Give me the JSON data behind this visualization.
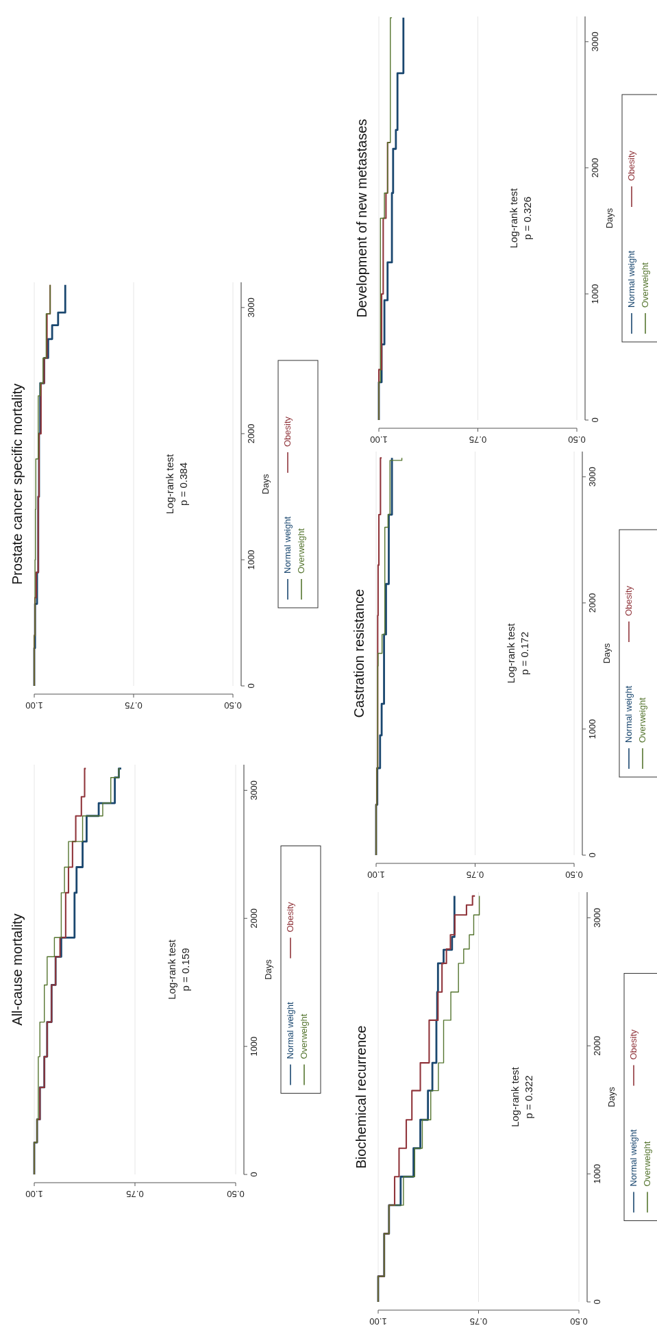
{
  "chart_data": [
    {
      "type": "step",
      "title": "All-cause mortality",
      "ylabel": "Days",
      "ylim": [
        0,
        3200
      ],
      "yticks": [
        0,
        1000,
        2000,
        3000
      ],
      "xlim": [
        1,
        0.5
      ],
      "xticks": [
        {
          "value": 1,
          "label": "1.00"
        },
        {
          "value": 0.75,
          "label": "0.75"
        },
        {
          "value": 0.5,
          "label": "0.50"
        }
      ],
      "grid": "x",
      "legend": "right",
      "annotations": [
        "Log-rank  test",
        "p = 0.159"
      ],
      "series": [
        {
          "name": "Normal weight",
          "color": "#1a476f",
          "values": [
            0,
            250,
            430,
            680,
            920,
            1190,
            1480,
            1700,
            1850,
            2200,
            2400,
            2600,
            2800,
            2900,
            3100,
            3170
          ],
          "x": [
            1,
            0.993,
            0.986,
            0.975,
            0.968,
            0.957,
            0.947,
            0.933,
            0.9,
            0.895,
            0.88,
            0.87,
            0.84,
            0.8,
            0.79,
            0.784
          ]
        },
        {
          "name": "Obesity",
          "color": "#90353b",
          "values": [
            0,
            250,
            430,
            680,
            920,
            1190,
            1480,
            1700,
            1850,
            2200,
            2400,
            2600,
            2800,
            2950,
            3170
          ],
          "x": [
            1,
            0.993,
            0.986,
            0.975,
            0.968,
            0.957,
            0.947,
            0.936,
            0.922,
            0.915,
            0.905,
            0.897,
            0.883,
            0.875,
            0.872
          ]
        },
        {
          "name": "Overweight",
          "color": "#55752f",
          "values": [
            0,
            250,
            430,
            680,
            920,
            1190,
            1480,
            1700,
            1850,
            2200,
            2400,
            2600,
            2800,
            2900,
            3100,
            3170
          ],
          "x": [
            1,
            0.993,
            0.99,
            0.99,
            0.986,
            0.975,
            0.968,
            0.95,
            0.933,
            0.925,
            0.915,
            0.88,
            0.83,
            0.81,
            0.79,
            0.787
          ]
        }
      ]
    },
    {
      "type": "step",
      "title": "Prostate cancer specific mortality",
      "ylabel": "Days",
      "ylim": [
        0,
        3200
      ],
      "yticks": [
        0,
        1000,
        2000,
        3000
      ],
      "xlim": [
        1,
        0.5
      ],
      "xticks": [
        {
          "value": 1,
          "label": "1.00"
        },
        {
          "value": 0.75,
          "label": "0.75"
        },
        {
          "value": 0.5,
          "label": "0.50"
        }
      ],
      "grid": "x",
      "legend": "right",
      "annotations": [
        "Log-rank  test",
        "p = 0.384"
      ],
      "series": [
        {
          "name": "Normal weight",
          "color": "#1a476f",
          "values": [
            0,
            300,
            650,
            900,
            1500,
            2000,
            2400,
            2600,
            2750,
            2860,
            2960,
            3180
          ],
          "x": [
            1,
            0.998,
            0.993,
            0.99,
            0.988,
            0.985,
            0.975,
            0.965,
            0.955,
            0.94,
            0.922,
            0.922
          ]
        },
        {
          "name": "Obesity",
          "color": "#90353b",
          "values": [
            0,
            400,
            700,
            900,
            1500,
            2000,
            2400,
            2600,
            2950,
            3180
          ],
          "x": [
            1,
            0.998,
            0.995,
            0.99,
            0.988,
            0.983,
            0.975,
            0.968,
            0.96,
            0.96
          ]
        },
        {
          "name": "Overweight",
          "color": "#55752f",
          "values": [
            0,
            400,
            1000,
            1400,
            1800,
            2300,
            2400,
            2600,
            2950,
            3180
          ],
          "x": [
            1,
            0.998,
            0.997,
            0.996,
            0.99,
            0.985,
            0.978,
            0.97,
            0.96,
            0.96
          ]
        }
      ]
    },
    {
      "type": "step",
      "title": "Biochemical recurrence",
      "ylabel": "Days",
      "ylim": [
        0,
        3200
      ],
      "yticks": [
        0,
        1000,
        2000,
        3000
      ],
      "xlim": [
        1,
        0.5
      ],
      "xticks": [
        {
          "value": 1,
          "label": "1.00"
        },
        {
          "value": 0.75,
          "label": "0.75"
        },
        {
          "value": 0.5,
          "label": "0.50"
        }
      ],
      "grid": "x",
      "legend": "right",
      "annotations": [
        "Log-rank  test",
        "p = 0.322"
      ],
      "series": [
        {
          "name": "Normal weight",
          "color": "#1a476f",
          "values": [
            0,
            200,
            533,
            755,
            978,
            1200,
            1422,
            1650,
            1867,
            2200,
            2420,
            2644,
            2750,
            2850,
            3170
          ],
          "x": [
            1,
            0.985,
            0.973,
            0.944,
            0.912,
            0.895,
            0.876,
            0.865,
            0.855,
            0.853,
            0.851,
            0.837,
            0.816,
            0.81,
            0.81
          ]
        },
        {
          "name": "Obesity",
          "color": "#90353b",
          "values": [
            0,
            200,
            533,
            755,
            978,
            1200,
            1422,
            1650,
            1867,
            2200,
            2420,
            2644,
            2756,
            2867,
            3022,
            3100,
            3170
          ],
          "x": [
            1,
            0.985,
            0.973,
            0.959,
            0.948,
            0.93,
            0.916,
            0.895,
            0.873,
            0.851,
            0.841,
            0.83,
            0.82,
            0.809,
            0.78,
            0.765,
            0.759
          ]
        },
        {
          "name": "Overweight",
          "color": "#55752f",
          "values": [
            0,
            200,
            533,
            755,
            978,
            1200,
            1422,
            1650,
            1867,
            2200,
            2420,
            2644,
            2756,
            2867,
            3022,
            3170
          ],
          "x": [
            1,
            0.985,
            0.973,
            0.937,
            0.909,
            0.89,
            0.869,
            0.85,
            0.837,
            0.819,
            0.8,
            0.787,
            0.773,
            0.762,
            0.748,
            0.748
          ]
        }
      ]
    },
    {
      "type": "step",
      "title": "Castration resistance",
      "ylabel": "Days",
      "ylim": [
        0,
        3200
      ],
      "yticks": [
        0,
        1000,
        2000,
        3000
      ],
      "xlim": [
        1,
        0.5
      ],
      "xticks": [
        {
          "value": 1,
          "label": "1.00"
        },
        {
          "value": 0.75,
          "label": "0.75"
        },
        {
          "value": 0.5,
          "label": "0.50"
        }
      ],
      "grid": "x",
      "legend": "right",
      "annotations": [
        "Log-rank  test",
        "p = 0.172"
      ],
      "series": [
        {
          "name": "Normal weight",
          "color": "#1a476f",
          "values": [
            0,
            400,
            690,
            950,
            1200,
            1750,
            2150,
            2700,
            3150
          ],
          "x": [
            1,
            0.997,
            0.99,
            0.986,
            0.98,
            0.975,
            0.968,
            0.96,
            0.96
          ]
        },
        {
          "name": "Obesity",
          "color": "#90353b",
          "values": [
            0,
            400,
            690,
            1900,
            2300,
            2700,
            3150
          ],
          "x": [
            1,
            0.998,
            0.996,
            0.995,
            0.993,
            0.989,
            0.986
          ]
        },
        {
          "name": "Overweight",
          "color": "#55752f",
          "values": [
            0,
            400,
            690,
            1500,
            1600,
            1750,
            2600,
            2700,
            3130,
            3150
          ],
          "x": [
            1,
            0.998,
            0.996,
            0.995,
            0.985,
            0.978,
            0.97,
            0.965,
            0.935,
            0.935
          ]
        }
      ]
    },
    {
      "type": "step",
      "title": "Development of new metastases",
      "ylabel": "Days",
      "ylim": [
        0,
        3200
      ],
      "yticks": [
        0,
        1000,
        2000,
        3000
      ],
      "xlim": [
        1,
        0.5
      ],
      "xticks": [
        {
          "value": 1,
          "label": "1.00"
        },
        {
          "value": 0.75,
          "label": "0.75"
        },
        {
          "value": 0.5,
          "label": "0.50"
        }
      ],
      "grid": "x",
      "legend": "right",
      "annotations": [
        "Log-rank  test",
        "p = 0.326"
      ],
      "series": [
        {
          "name": "Normal weight",
          "color": "#1a476f",
          "values": [
            0,
            300,
            600,
            950,
            1250,
            1800,
            2150,
            2300,
            2750,
            3190
          ],
          "x": [
            1,
            0.993,
            0.986,
            0.978,
            0.967,
            0.964,
            0.957,
            0.953,
            0.938,
            0.938
          ]
        },
        {
          "name": "Obesity",
          "color": "#90353b",
          "values": [
            0,
            400,
            1000,
            1600,
            1800,
            2200
          ],
          "x": [
            1,
            0.993,
            0.989,
            0.982,
            0.978,
            0.971
          ]
        },
        {
          "name": "Overweight",
          "color": "#55752f",
          "values": [
            0,
            300,
            1300,
            1600,
            1800,
            2200,
            3190
          ],
          "x": [
            1,
            0.996,
            0.996,
            0.986,
            0.978,
            0.971,
            0.967
          ]
        }
      ]
    }
  ]
}
